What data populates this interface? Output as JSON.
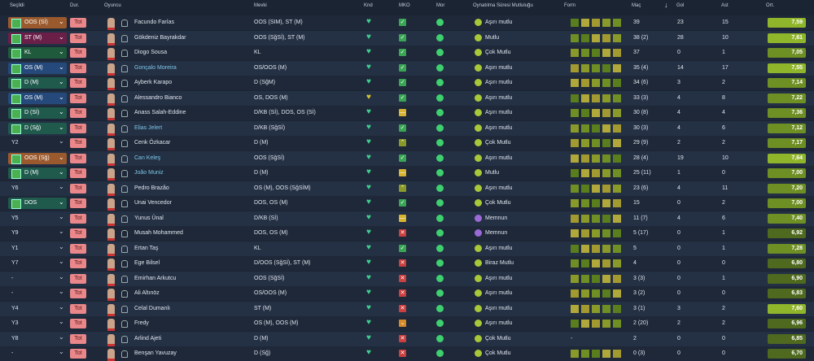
{
  "header": {
    "selected": "Seçildi",
    "dur": "Dur.",
    "player": "Oyuncu",
    "position": "Mevki",
    "knd": "Knd",
    "mko": "MKO",
    "mor": "Mor",
    "happiness": "Oynatılma Süresi Mutluluğu",
    "form": "Form",
    "apps": "Maç",
    "goals": "Gol",
    "assists": "Ast",
    "rating": "Ort."
  },
  "rows": [
    {
      "selected": "OOS (Sİ)",
      "dur": "Tot",
      "name": "Facundo Farías",
      "position": "OOS (SIM), ST (M)",
      "happiness": "Aşırı mutlu",
      "apps": "39",
      "goals": "23",
      "assists": "15",
      "rating": "7,59"
    },
    {
      "selected": "ST (M)",
      "dur": "Tot",
      "name": "Gökdeniz Bayrakdar",
      "position": "OOS (SğSİ), ST (M)",
      "happiness": "Mutlu",
      "apps": "38 (2)",
      "goals": "28",
      "assists": "10",
      "rating": "7,61"
    },
    {
      "selected": "KL",
      "dur": "Tot",
      "name": "Diogo Sousa",
      "position": "KL",
      "happiness": "Çok Mutlu",
      "apps": "37",
      "goals": "0",
      "assists": "1",
      "rating": "7,05"
    },
    {
      "selected": "OS (M)",
      "dur": "Tot",
      "name": "Gonçalo Moreira",
      "position": "OS/OOS (M)",
      "happiness": "Aşırı mutlu",
      "apps": "35 (4)",
      "goals": "14",
      "assists": "17",
      "rating": "7,55"
    },
    {
      "selected": "D (M)",
      "dur": "Tot",
      "name": "Ayberk Karapo",
      "position": "D (SğM)",
      "happiness": "Aşırı mutlu",
      "apps": "34 (6)",
      "goals": "3",
      "assists": "2",
      "rating": "7,14"
    },
    {
      "selected": "OS (M)",
      "dur": "Tot",
      "name": "Alessandro Bianco",
      "position": "OS, DOS (M)",
      "happiness": "Aşırı mutlu",
      "apps": "33 (3)",
      "goals": "4",
      "assists": "8",
      "rating": "7,22"
    },
    {
      "selected": "D (Sİ)",
      "dur": "Tot",
      "name": "Anass Salah-Eddine",
      "position": "D/KB (Sİ), DOS, OS (Sİ)",
      "happiness": "Aşırı mutlu",
      "apps": "30 (8)",
      "goals": "4",
      "assists": "4",
      "rating": "7,36"
    },
    {
      "selected": "D (Sğ)",
      "dur": "Tot",
      "name": "Elias Jelert",
      "position": "D/KB (SğSİ)",
      "happiness": "Aşırı mutlu",
      "apps": "30 (3)",
      "goals": "4",
      "assists": "6",
      "rating": "7,12"
    },
    {
      "selected": "Y2",
      "dur": "Tot",
      "name": "Cenk Özkacar",
      "position": "D (M)",
      "happiness": "Çok Mutlu",
      "apps": "29 (9)",
      "goals": "2",
      "assists": "2",
      "rating": "7,17"
    },
    {
      "selected": "OOS (Sğ)",
      "dur": "Tot",
      "name": "Can Keleş",
      "position": "OOS (SğSİ)",
      "happiness": "Aşırı mutlu",
      "apps": "28 (4)",
      "goals": "19",
      "assists": "10",
      "rating": "7,64"
    },
    {
      "selected": "D (M)",
      "dur": "Tot",
      "name": "João Muniz",
      "position": "D (M)",
      "happiness": "Mutlu",
      "apps": "25 (11)",
      "goals": "1",
      "assists": "0",
      "rating": "7,00"
    },
    {
      "selected": "Y6",
      "dur": "Tot",
      "name": "Pedro Brazão",
      "position": "OS (M), OOS (SğSİM)",
      "happiness": "Aşırı mutlu",
      "apps": "23 (6)",
      "goals": "4",
      "assists": "11",
      "rating": "7,20"
    },
    {
      "selected": "DOS",
      "dur": "Tot",
      "name": "Unai Vencedor",
      "position": "DOS, OS (M)",
      "happiness": "Çok Mutlu",
      "apps": "15",
      "goals": "0",
      "assists": "2",
      "rating": "7,00"
    },
    {
      "selected": "Y5",
      "dur": "Tot",
      "name": "Yunus Ünal",
      "position": "D/KB (Sİ)",
      "happiness": "Memnun",
      "apps": "11 (7)",
      "goals": "4",
      "assists": "6",
      "rating": "7,40"
    },
    {
      "selected": "Y9",
      "dur": "Tot",
      "name": "Musah Mohammed",
      "position": "DOS, OS (M)",
      "happiness": "Memnun",
      "apps": "5 (17)",
      "goals": "0",
      "assists": "1",
      "rating": "6,92"
    },
    {
      "selected": "Y1",
      "dur": "Tot",
      "name": "Ertan Taş",
      "position": "KL",
      "happiness": "Aşırı mutlu",
      "apps": "5",
      "goals": "0",
      "assists": "1",
      "rating": "7,28"
    },
    {
      "selected": "Y7",
      "dur": "Tot",
      "name": "Ege Bilsel",
      "position": "D/OOS (SğSİ), ST (M)",
      "happiness": "Biraz Mutlu",
      "apps": "4",
      "goals": "0",
      "assists": "0",
      "rating": "6,80"
    },
    {
      "selected": "-",
      "dur": "Tot",
      "name": "Emirhan Arkutcu",
      "position": "OOS (SğSİ)",
      "happiness": "Aşırı mutlu",
      "apps": "3 (3)",
      "goals": "0",
      "assists": "1",
      "rating": "6,90"
    },
    {
      "selected": "-",
      "dur": "Tot",
      "name": "Ali Altınöz",
      "position": "OS/OOS (M)",
      "happiness": "Aşırı mutlu",
      "apps": "3 (2)",
      "goals": "0",
      "assists": "0",
      "rating": "6,83"
    },
    {
      "selected": "Y4",
      "dur": "Tot",
      "name": "Celal Dumanlı",
      "position": "ST (M)",
      "happiness": "Aşırı mutlu",
      "apps": "3 (1)",
      "goals": "3",
      "assists": "2",
      "rating": "7,60"
    },
    {
      "selected": "Y3",
      "dur": "Tot",
      "name": "Fredy",
      "position": "OS (M), OOS (M)",
      "happiness": "Aşırı mutlu",
      "apps": "2 (20)",
      "goals": "2",
      "assists": "2",
      "rating": "6,96"
    },
    {
      "selected": "Y8",
      "dur": "Tot",
      "name": "Arlind Ajeti",
      "position": "D (M)",
      "happiness": "Çok Mutlu",
      "form": "-",
      "apps": "2",
      "goals": "0",
      "assists": "0",
      "rating": "6,85"
    },
    {
      "selected": "-",
      "dur": "Tot",
      "name": "Benşan Yavuzay",
      "position": "D (Sğ)",
      "happiness": "Çok Mutlu",
      "apps": "0 (3)",
      "goals": "0",
      "assists": "0",
      "rating": "6,70"
    }
  ]
}
